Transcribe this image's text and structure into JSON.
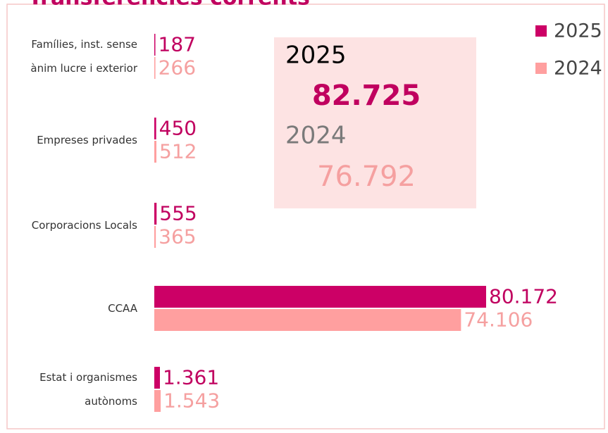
{
  "chart_data": {
    "type": "hbar",
    "title": "Transferències corrents",
    "categories": [
      [
        "Famílies, inst. sense",
        "ànim lucre i exterior"
      ],
      [
        "Empreses privades"
      ],
      [
        "Corporacions Locals"
      ],
      [
        "CCAA"
      ],
      [
        "Estat i organismes",
        "autònoms"
      ]
    ],
    "series": [
      {
        "name": "2025",
        "color": "#cc0066",
        "label_color": "#c0005f",
        "values": [
          187,
          450,
          555,
          80172,
          1361
        ],
        "value_labels": [
          "187",
          "450",
          "555",
          "80.172",
          "1.361"
        ]
      },
      {
        "name": "2024",
        "color": "#ff9f9f",
        "label_color": "#f5a0a0",
        "values": [
          266,
          512,
          365,
          74106,
          1543
        ],
        "value_labels": [
          "266",
          "512",
          "365",
          "74.106",
          "1.543"
        ]
      }
    ],
    "legend": "top-right",
    "annotations": [
      {
        "year": "2025",
        "value": 82725,
        "label": "82.725"
      },
      {
        "year": "2024",
        "value": 76792,
        "label": "76.792"
      }
    ]
  }
}
